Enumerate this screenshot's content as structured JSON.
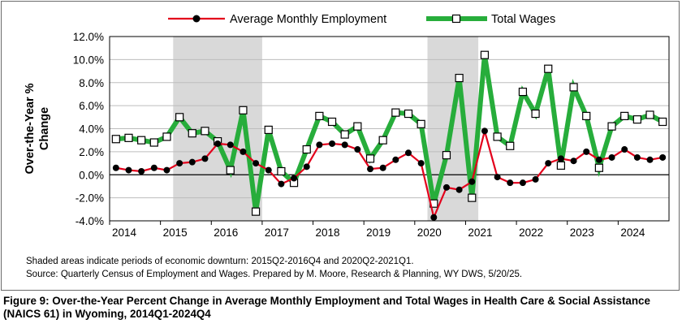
{
  "chart_data": {
    "type": "line",
    "ylabel": "Over-the-Year % Change",
    "ylim": [
      -4,
      12
    ],
    "yticks": [
      -4,
      -2,
      0,
      2,
      4,
      6,
      8,
      10,
      12
    ],
    "ytick_labels": [
      "-4.0%",
      "-2.0%",
      "0.0%",
      "2.0%",
      "4.0%",
      "6.0%",
      "8.0%",
      "10.0%",
      "12.0%"
    ],
    "x_year_labels": [
      "2014",
      "2015",
      "2016",
      "2017",
      "2018",
      "2019",
      "2020",
      "2021",
      "2022",
      "2023",
      "2024"
    ],
    "x": [
      "2014Q1",
      "2014Q2",
      "2014Q3",
      "2014Q4",
      "2015Q1",
      "2015Q2",
      "2015Q3",
      "2015Q4",
      "2016Q1",
      "2016Q2",
      "2016Q3",
      "2016Q4",
      "2017Q1",
      "2017Q2",
      "2017Q3",
      "2017Q4",
      "2018Q1",
      "2018Q2",
      "2018Q3",
      "2018Q4",
      "2019Q1",
      "2019Q2",
      "2019Q3",
      "2019Q4",
      "2020Q1",
      "2020Q2",
      "2020Q3",
      "2020Q4",
      "2021Q1",
      "2021Q2",
      "2021Q3",
      "2021Q4",
      "2022Q1",
      "2022Q2",
      "2022Q3",
      "2022Q4",
      "2023Q1",
      "2023Q2",
      "2023Q3",
      "2023Q4",
      "2024Q1",
      "2024Q2",
      "2024Q3",
      "2024Q4"
    ],
    "shaded_periods": [
      [
        "2015Q2",
        "2016Q4"
      ],
      [
        "2020Q2",
        "2021Q1"
      ]
    ],
    "grid": true,
    "legend_position": "top",
    "series": [
      {
        "name": "Average Monthly Employment",
        "color": "#e3001b",
        "marker": "filled-circle",
        "marker_color": "#000000",
        "values": [
          0.6,
          0.4,
          0.3,
          0.6,
          0.4,
          1.0,
          1.1,
          1.4,
          2.7,
          2.6,
          2.0,
          1.0,
          0.4,
          -0.8,
          -0.3,
          0.7,
          2.6,
          2.7,
          2.6,
          2.2,
          0.5,
          0.6,
          1.3,
          1.9,
          1.0,
          -3.7,
          -1.1,
          -1.3,
          -0.6,
          3.8,
          -0.2,
          -0.7,
          -0.7,
          -0.4,
          1.0,
          1.4,
          1.2,
          2.0,
          1.3,
          1.5,
          2.2,
          1.5,
          1.3,
          1.5
        ]
      },
      {
        "name": "Total Wages",
        "color": "#27ad3b",
        "marker": "open-square",
        "marker_color": "#ffffff",
        "values": [
          3.1,
          3.2,
          3.0,
          2.8,
          3.3,
          5.0,
          3.6,
          3.8,
          2.9,
          0.4,
          5.6,
          -3.2,
          3.9,
          0.3,
          -0.7,
          2.2,
          5.1,
          4.6,
          3.5,
          4.2,
          1.4,
          3.0,
          5.4,
          5.3,
          4.4,
          -2.5,
          1.7,
          8.4,
          -2.0,
          10.4,
          3.3,
          2.5,
          7.2,
          5.3,
          9.2,
          0.8,
          7.6,
          5.1,
          0.6,
          4.2,
          5.1,
          4.8,
          5.2,
          4.6
        ]
      }
    ]
  },
  "notes": {
    "shading": "Shaded areas indicate periods of economic downturn: 2015Q2-2016Q4 and 2020Q2-2021Q1.",
    "source": "Source: Quarterly Census of Employment and Wages. Prepared by M. Moore, Research & Planning, WY DWS, 5/20/25."
  },
  "caption": "Figure 9: Over-the-Year Percent Change in Average Monthly Employment and Total Wages in Health Care & Social Assistance (NAICS 61) in Wyoming, 2014Q1-2024Q4"
}
